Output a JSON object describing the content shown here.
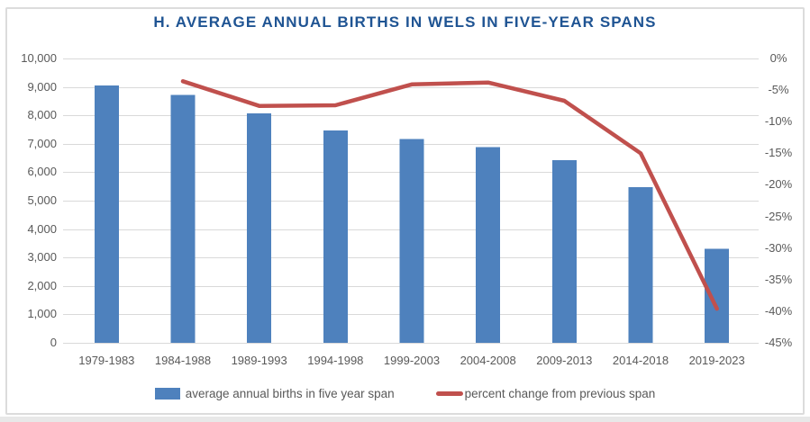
{
  "window": {
    "bottom_strip_color": "#e8e8e8",
    "panel_border_color": "#dcdcdc"
  },
  "chart": {
    "title": "H. AVERAGE ANNUAL BIRTHS IN WELS IN FIVE-YEAR SPANS",
    "title_color": "#1f5493",
    "legend": [
      {
        "swatch": "bar-swatch",
        "label": "average annual births in five year span",
        "color": "#4e81bd"
      },
      {
        "swatch": "line-swatch",
        "label": "percent change from previous span",
        "color": "#c0504d"
      }
    ]
  },
  "chart_data": {
    "type": "bar",
    "title": "H. AVERAGE ANNUAL BIRTHS IN WELS IN FIVE-YEAR SPANS",
    "categories": [
      "1979-1983",
      "1984-1988",
      "1989-1993",
      "1994-1998",
      "1999-2003",
      "2004-2008",
      "2009-2013",
      "2014-2018",
      "2019-2023"
    ],
    "series": [
      {
        "name": "average annual births in five year span",
        "type": "bar",
        "axis": "left",
        "color": "#4e81bd",
        "values": [
          9050,
          8720,
          8070,
          7470,
          7160,
          6890,
          6430,
          5470,
          3300
        ]
      },
      {
        "name": "percent change from previous span",
        "type": "line",
        "axis": "right",
        "color": "#c0504d",
        "values": [
          null,
          -3.6,
          -7.5,
          -7.4,
          -4.1,
          -3.8,
          -6.7,
          -15,
          -39.6
        ]
      }
    ],
    "left_axis": {
      "min": 0,
      "max": 10000,
      "step": 1000,
      "tick_labels": [
        "0",
        "1,000",
        "2,000",
        "3,000",
        "4,000",
        "5,000",
        "6,000",
        "7,000",
        "8,000",
        "9,000",
        "10,000"
      ]
    },
    "right_axis": {
      "min": -45,
      "max": 0,
      "step": 5,
      "tick_labels": [
        "0%",
        "-5%",
        "-10%",
        "-15%",
        "-20%",
        "-25%",
        "-30%",
        "-35%",
        "-40%",
        "-45%"
      ]
    },
    "grid": true,
    "gridline_color": "#d9d9d9",
    "legend_position": "bottom",
    "xlabel": "",
    "ylabel": ""
  }
}
